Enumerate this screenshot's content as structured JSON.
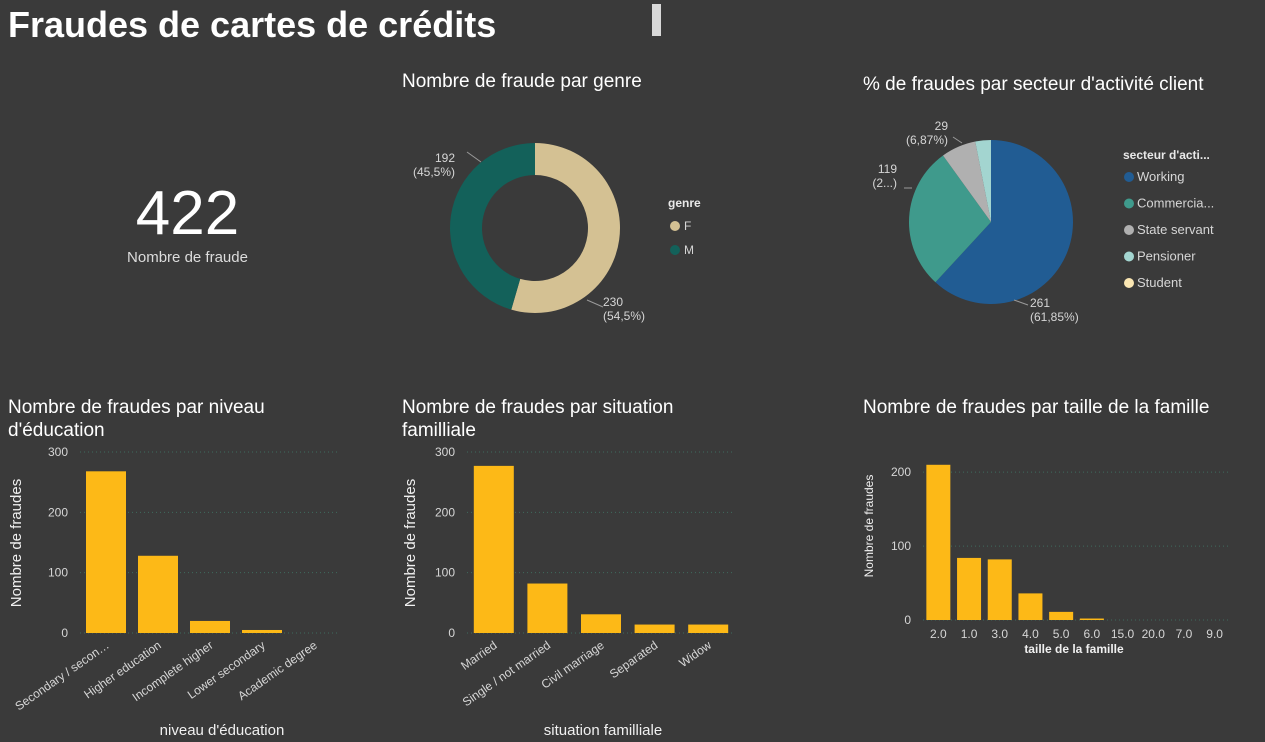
{
  "page_title": "Fraudes de cartes de crédits",
  "kpi": {
    "value": "422",
    "label": "Nombre de fraude"
  },
  "colors": {
    "background": "#3a3a3a",
    "bar": "#fdb917",
    "gender_f": "#d4c193",
    "gender_m": "#13615a",
    "working": "#215c93",
    "commercial": "#3f9a8c",
    "state_servant": "#b0b0b0",
    "pensioner": "#a3d5d0",
    "student": "#fbe7b3"
  },
  "chart_data": [
    {
      "id": "genre",
      "type": "pie",
      "variant": "donut",
      "title": "Nombre de fraude par genre",
      "legend_title": "genre",
      "legend_position": "right",
      "slices": [
        {
          "label": "F",
          "value": 230,
          "percent_label": "(54,5%)",
          "color": "#d4c193"
        },
        {
          "label": "M",
          "value": 192,
          "percent_label": "(45,5%)",
          "color": "#13615a"
        }
      ]
    },
    {
      "id": "secteur",
      "type": "pie",
      "title": "% de fraudes par secteur d'activité client",
      "legend_title": "secteur d'acti...",
      "legend_position": "right",
      "slices": [
        {
          "label": "Working",
          "legend_label": "Working",
          "value": 261,
          "percent_label": "(61,85%)",
          "color": "#215c93"
        },
        {
          "label": "Commercial associate",
          "legend_label": "Commercia...",
          "value": 119,
          "percent_label": "(2...)",
          "color": "#3f9a8c"
        },
        {
          "label": "State servant",
          "legend_label": "State servant",
          "value": 29,
          "percent_label": "(6,87%)",
          "color": "#b0b0b0"
        },
        {
          "label": "Pensioner",
          "legend_label": "Pensioner",
          "value": 13,
          "percent_label": "",
          "color": "#a3d5d0"
        },
        {
          "label": "Student",
          "legend_label": "Student",
          "value": 0,
          "percent_label": "",
          "color": "#fbe7b3"
        }
      ]
    },
    {
      "id": "education",
      "type": "bar",
      "title": "Nombre de fraudes par niveau d'éducation",
      "xlabel": "niveau d'éducation",
      "ylabel": "Nombre de fraudes",
      "ylim": [
        0,
        300
      ],
      "yticks": [
        "0",
        "100",
        "200",
        "300"
      ],
      "grid": true,
      "categories": [
        "Secondary / secon…",
        "Higher education",
        "Incomplete higher",
        "Lower secondary",
        "Academic degree"
      ],
      "values": [
        268,
        128,
        20,
        5,
        0
      ]
    },
    {
      "id": "famille_situation",
      "type": "bar",
      "title": "Nombre de fraudes par situation familliale",
      "xlabel": "situation familliale",
      "ylabel": "Nombre de fraudes",
      "ylim": [
        0,
        300
      ],
      "yticks": [
        "0",
        "100",
        "200",
        "300"
      ],
      "grid": true,
      "categories": [
        "Married",
        "Single / not married",
        "Civil marriage",
        "Separated",
        "Widow"
      ],
      "values": [
        277,
        82,
        31,
        14,
        14
      ]
    },
    {
      "id": "taille_famille",
      "type": "bar",
      "title": "Nombre de fraudes par taille de la famille",
      "xlabel": "taille de la famille",
      "ylabel": "Nombre de fraudes",
      "ylim": [
        0,
        230
      ],
      "yticks": [
        "0",
        "100",
        "200"
      ],
      "grid": true,
      "categories": [
        "2.0",
        "1.0",
        "3.0",
        "4.0",
        "5.0",
        "6.0",
        "15.0",
        "20.0",
        "7.0",
        "9.0"
      ],
      "values": [
        210,
        84,
        82,
        36,
        11,
        2,
        0,
        0,
        0,
        0
      ]
    }
  ]
}
